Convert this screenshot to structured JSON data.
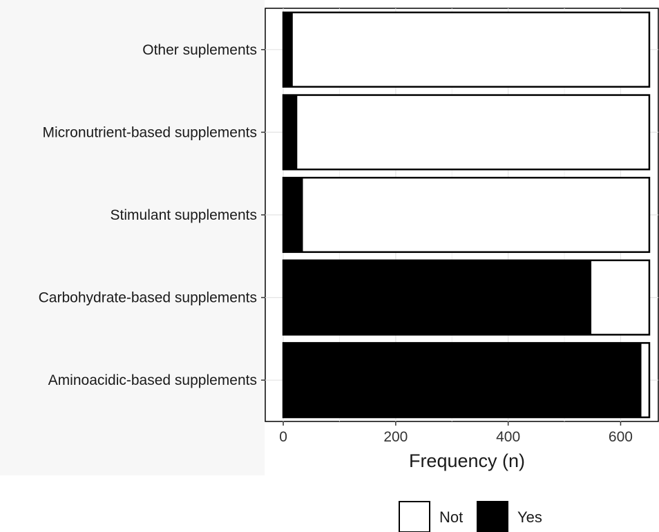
{
  "chart_data": {
    "type": "bar",
    "orientation": "horizontal",
    "stacked": true,
    "categories": [
      "Other suplements",
      "Micronutrient-based supplements",
      "Stimulant supplements",
      "Carbohydrate-based supplements",
      "Aminoacidic-based supplements"
    ],
    "series": [
      {
        "name": "Yes",
        "color": "#000000",
        "values": [
          17,
          25,
          35,
          548,
          637
        ]
      },
      {
        "name": "Not",
        "color": "#ffffff",
        "values": [
          634,
          626,
          616,
          103,
          14
        ]
      }
    ],
    "xlabel": "Frequency (n)",
    "xticks": [
      "0",
      "200",
      "400",
      "600"
    ],
    "xlim": [
      -32,
      667
    ],
    "grid": true,
    "legend_position": "bottom",
    "legend": [
      {
        "label": "Not",
        "color": "#ffffff"
      },
      {
        "label": "Yes",
        "color": "#000000"
      }
    ]
  }
}
